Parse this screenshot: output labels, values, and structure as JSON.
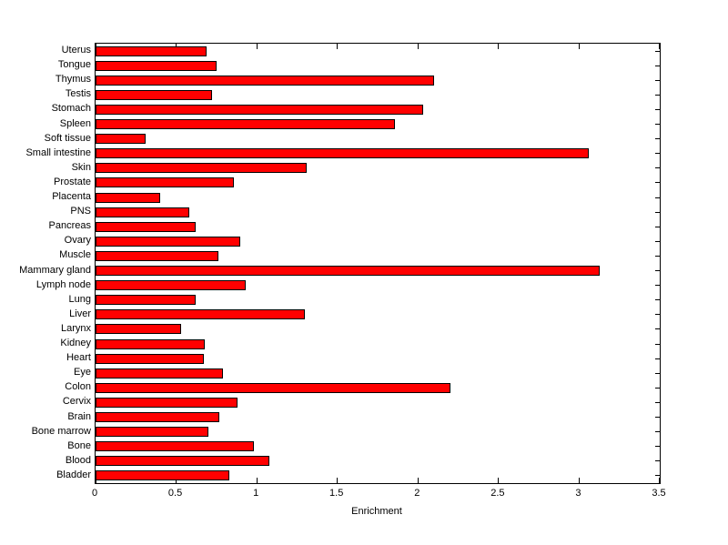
{
  "chart_data": {
    "type": "bar",
    "orientation": "horizontal",
    "title": "",
    "xlabel": "Enrichment",
    "ylabel": "",
    "xlim": [
      0,
      3.5
    ],
    "x_ticks": [
      0,
      0.5,
      1,
      1.5,
      2,
      2.5,
      3,
      3.5
    ],
    "x_tick_labels": [
      "0",
      "0.5",
      "1",
      "1.5",
      "2",
      "2.5",
      "3",
      "3.5"
    ],
    "categories_top_to_bottom": [
      "Uterus",
      "Tongue",
      "Thymus",
      "Testis",
      "Stomach",
      "Spleen",
      "Soft tissue",
      "Small intestine",
      "Skin",
      "Prostate",
      "Placenta",
      "PNS",
      "Pancreas",
      "Ovary",
      "Muscle",
      "Mammary gland",
      "Lymph node",
      "Lung",
      "Liver",
      "Larynx",
      "Kidney",
      "Heart",
      "Eye",
      "Colon",
      "Cervix",
      "Brain",
      "Bone marrow",
      "Bone",
      "Blood",
      "Bladder"
    ],
    "values": [
      0.69,
      0.75,
      2.1,
      0.72,
      2.03,
      1.86,
      0.31,
      3.06,
      1.31,
      0.86,
      0.4,
      0.58,
      0.62,
      0.9,
      0.76,
      3.13,
      0.93,
      0.62,
      1.3,
      0.53,
      0.68,
      0.67,
      0.79,
      2.2,
      0.88,
      0.77,
      0.7,
      0.98,
      1.08,
      0.83
    ],
    "bar_color": "#ff0000",
    "bar_edge_color": "#000000",
    "axis_color": "#000000",
    "background_color": "#ffffff",
    "grid": false,
    "legend": null
  }
}
